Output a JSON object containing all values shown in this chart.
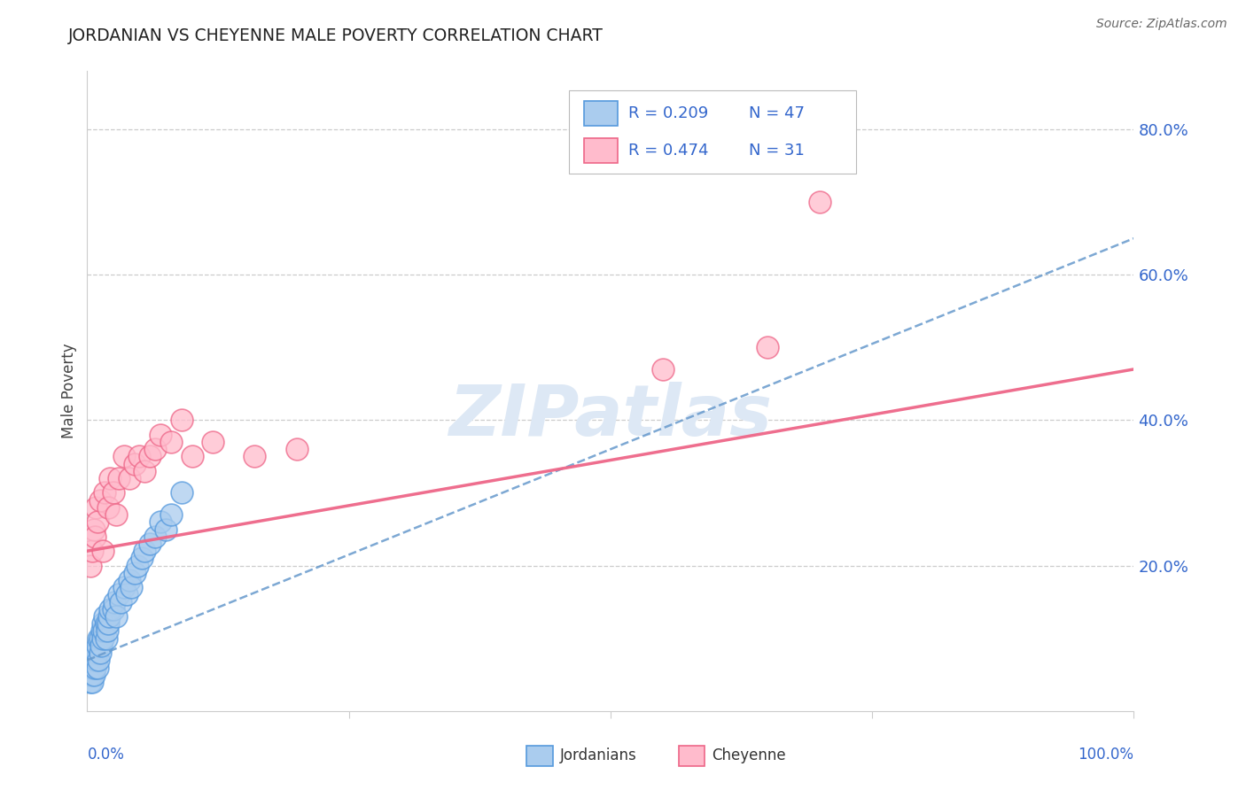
{
  "title": "JORDANIAN VS CHEYENNE MALE POVERTY CORRELATION CHART",
  "source_text": "Source: ZipAtlas.com",
  "ylabel": "Male Poverty",
  "y_tick_labels": [
    "20.0%",
    "40.0%",
    "60.0%",
    "80.0%"
  ],
  "y_tick_values": [
    0.2,
    0.4,
    0.6,
    0.8
  ],
  "x_range": [
    0.0,
    1.0
  ],
  "y_range": [
    0.0,
    0.88
  ],
  "legend_r1": "R = 0.209",
  "legend_n1": "N = 47",
  "legend_r2": "R = 0.474",
  "legend_n2": "N = 31",
  "blue_scatter_face": "#AACCEE",
  "blue_scatter_edge": "#5599DD",
  "pink_scatter_face": "#FFBBCC",
  "pink_scatter_edge": "#EE6688",
  "blue_line_color": "#6699CC",
  "pink_line_color": "#EE6688",
  "legend_text_color": "#3366CC",
  "title_color": "#222222",
  "background_color": "#FFFFFF",
  "grid_color": "#CCCCCC",
  "watermark_color": "#DDE8F5",
  "jordanian_x": [
    0.003,
    0.004,
    0.005,
    0.005,
    0.006,
    0.007,
    0.007,
    0.008,
    0.008,
    0.009,
    0.01,
    0.01,
    0.011,
    0.011,
    0.012,
    0.012,
    0.013,
    0.014,
    0.015,
    0.015,
    0.016,
    0.017,
    0.018,
    0.018,
    0.019,
    0.02,
    0.021,
    0.022,
    0.025,
    0.026,
    0.028,
    0.03,
    0.032,
    0.035,
    0.038,
    0.04,
    0.042,
    0.045,
    0.048,
    0.052,
    0.055,
    0.06,
    0.065,
    0.07,
    0.075,
    0.08,
    0.09
  ],
  "jordanian_y": [
    0.04,
    0.05,
    0.04,
    0.06,
    0.05,
    0.07,
    0.06,
    0.08,
    0.07,
    0.08,
    0.09,
    0.06,
    0.1,
    0.07,
    0.1,
    0.08,
    0.09,
    0.11,
    0.1,
    0.12,
    0.11,
    0.13,
    0.12,
    0.1,
    0.11,
    0.12,
    0.13,
    0.14,
    0.14,
    0.15,
    0.13,
    0.16,
    0.15,
    0.17,
    0.16,
    0.18,
    0.17,
    0.19,
    0.2,
    0.21,
    0.22,
    0.23,
    0.24,
    0.26,
    0.25,
    0.27,
    0.3
  ],
  "cheyenne_x": [
    0.003,
    0.005,
    0.006,
    0.007,
    0.008,
    0.01,
    0.012,
    0.015,
    0.017,
    0.02,
    0.022,
    0.025,
    0.028,
    0.03,
    0.035,
    0.04,
    0.045,
    0.05,
    0.055,
    0.06,
    0.065,
    0.07,
    0.08,
    0.09,
    0.1,
    0.12,
    0.16,
    0.2,
    0.55,
    0.65,
    0.7
  ],
  "cheyenne_y": [
    0.2,
    0.22,
    0.25,
    0.24,
    0.28,
    0.26,
    0.29,
    0.22,
    0.3,
    0.28,
    0.32,
    0.3,
    0.27,
    0.32,
    0.35,
    0.32,
    0.34,
    0.35,
    0.33,
    0.35,
    0.36,
    0.38,
    0.37,
    0.4,
    0.35,
    0.37,
    0.35,
    0.36,
    0.47,
    0.5,
    0.7
  ],
  "blue_trendline_x0": 0.0,
  "blue_trendline_y0": 0.07,
  "blue_trendline_x1": 1.0,
  "blue_trendline_y1": 0.65,
  "pink_trendline_x0": 0.0,
  "pink_trendline_y0": 0.22,
  "pink_trendline_x1": 1.0,
  "pink_trendline_y1": 0.47
}
